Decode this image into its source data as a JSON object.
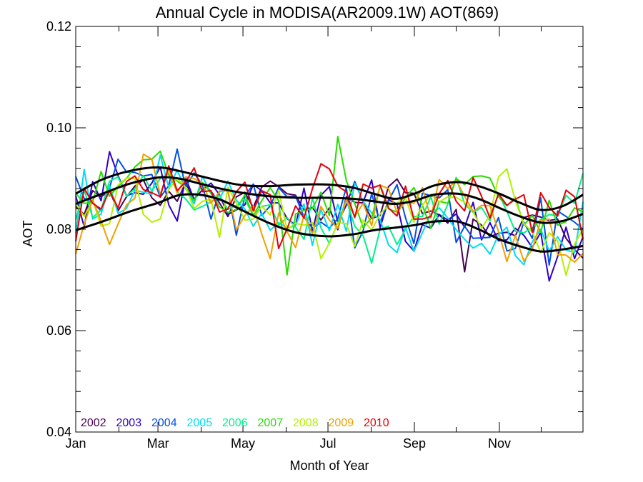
{
  "chart_data": {
    "type": "line",
    "title": "Annual Cycle in MODISA(AR2009.1W) AOT(869)",
    "xlabel": "Month of Year",
    "ylabel": "AOT",
    "xlim": [
      1,
      365
    ],
    "ylim": [
      0.04,
      0.12
    ],
    "x_ticks": [
      {
        "day": 1,
        "label": "Jan"
      },
      {
        "day": 60,
        "label": "Mar"
      },
      {
        "day": 121,
        "label": "May"
      },
      {
        "day": 182,
        "label": "Jul"
      },
      {
        "day": 244,
        "label": "Sep"
      },
      {
        "day": 305,
        "label": "Nov"
      }
    ],
    "y_ticks": [
      {
        "value": 0.04,
        "label": "0.04"
      },
      {
        "value": 0.06,
        "label": "0.06"
      },
      {
        "value": 0.08,
        "label": "0.08"
      },
      {
        "value": 0.1,
        "label": "0.10"
      },
      {
        "value": 0.12,
        "label": "0.12"
      }
    ],
    "legend_placement": "bottom-left",
    "series": [
      {
        "name": "2002",
        "color": "#4b0055",
        "values": [
          0.0845,
          0.0829,
          0.0876,
          0.0864,
          0.0876,
          0.0836,
          0.0864,
          0.0885,
          0.0897,
          0.0862,
          0.0847,
          0.0875,
          0.0855,
          0.0892,
          0.0857,
          0.0891,
          0.0875,
          0.0852,
          0.0825,
          0.0864,
          0.0873,
          0.0843,
          0.0883,
          0.0895,
          0.0884,
          0.087,
          0.0867,
          0.0838,
          0.0843,
          0.0818,
          0.0842,
          0.0799,
          0.0864,
          0.0853,
          0.0852,
          0.0821,
          0.0827,
          0.0884,
          0.0899,
          0.0872,
          0.0871,
          0.0831,
          0.0836,
          0.0828,
          0.0812,
          0.0839,
          0.0716,
          0.082,
          0.0808,
          0.0785,
          0.0792,
          0.0794,
          0.0787,
          0.0823,
          0.0828,
          0.0824,
          0.0817,
          0.082,
          0.0782,
          0.076,
          0.0743
        ]
      },
      {
        "name": "2003",
        "color": "#2f00c8",
        "values": [
          0.0866,
          0.0805,
          0.0894,
          0.0856,
          0.0953,
          0.0906,
          0.0866,
          0.0872,
          0.0869,
          0.0891,
          0.0923,
          0.0848,
          0.0816,
          0.0901,
          0.0859,
          0.0878,
          0.0891,
          0.0868,
          0.0829,
          0.0838,
          0.0848,
          0.0888,
          0.0876,
          0.0852,
          0.0852,
          0.0821,
          0.0808,
          0.0881,
          0.0796,
          0.0867,
          0.0884,
          0.0814,
          0.0847,
          0.0894,
          0.0854,
          0.0897,
          0.0803,
          0.0858,
          0.085,
          0.0776,
          0.0757,
          0.0809,
          0.0802,
          0.0829,
          0.0818,
          0.083,
          0.0804,
          0.0853,
          0.0779,
          0.0813,
          0.0777,
          0.0779,
          0.0802,
          0.0788,
          0.0764,
          0.0794,
          0.0698,
          0.0746,
          0.0804,
          0.0742,
          0.0785
        ]
      },
      {
        "name": "2004",
        "color": "#0050e6",
        "values": [
          0.0904,
          0.0861,
          0.0853,
          0.0836,
          0.0882,
          0.0938,
          0.0913,
          0.0912,
          0.0905,
          0.0908,
          0.0863,
          0.0886,
          0.0958,
          0.0883,
          0.0911,
          0.0886,
          0.082,
          0.0875,
          0.0876,
          0.0788,
          0.0865,
          0.0889,
          0.0827,
          0.0846,
          0.0882,
          0.0864,
          0.0865,
          0.0824,
          0.0802,
          0.0814,
          0.0802,
          0.0821,
          0.0883,
          0.0763,
          0.0797,
          0.087,
          0.0813,
          0.0856,
          0.0888,
          0.0823,
          0.0772,
          0.0871,
          0.0866,
          0.0862,
          0.0878,
          0.0774,
          0.0806,
          0.0782,
          0.0783,
          0.0784,
          0.0823,
          0.0757,
          0.0762,
          0.0814,
          0.0782,
          0.0862,
          0.0729,
          0.0836,
          0.0825,
          0.0814,
          0.08
        ]
      },
      {
        "name": "2005",
        "color": "#00dcf0",
        "values": [
          0.0792,
          0.0918,
          0.082,
          0.083,
          0.0886,
          0.0831,
          0.0841,
          0.0877,
          0.0873,
          0.0869,
          0.0946,
          0.0882,
          0.0916,
          0.088,
          0.085,
          0.0904,
          0.087,
          0.0858,
          0.0895,
          0.0857,
          0.084,
          0.0806,
          0.0831,
          0.0798,
          0.0813,
          0.0802,
          0.0807,
          0.085,
          0.0768,
          0.0839,
          0.0797,
          0.0849,
          0.0796,
          0.0891,
          0.0855,
          0.0832,
          0.0819,
          0.0769,
          0.0754,
          0.0804,
          0.0756,
          0.0793,
          0.083,
          0.0842,
          0.0822,
          0.0799,
          0.078,
          0.0763,
          0.0772,
          0.0751,
          0.0789,
          0.0804,
          0.0748,
          0.073,
          0.0775,
          0.08,
          0.0757,
          0.0785,
          0.0759,
          0.0754,
          0.0854
        ]
      },
      {
        "name": "2006",
        "color": "#00f08c",
        "values": [
          0.0819,
          0.0878,
          0.0823,
          0.0838,
          0.0895,
          0.0903,
          0.0865,
          0.088,
          0.0906,
          0.0875,
          0.09,
          0.0909,
          0.0874,
          0.086,
          0.0838,
          0.0845,
          0.0854,
          0.0867,
          0.0839,
          0.0847,
          0.0859,
          0.0827,
          0.0845,
          0.0848,
          0.0808,
          0.0823,
          0.0804,
          0.078,
          0.0861,
          0.0803,
          0.0772,
          0.0813,
          0.0858,
          0.0806,
          0.0787,
          0.0733,
          0.08,
          0.0806,
          0.077,
          0.08,
          0.0825,
          0.0825,
          0.0864,
          0.081,
          0.0849,
          0.0902,
          0.085,
          0.0833,
          0.0843,
          0.0816,
          0.0871,
          0.0835,
          0.0796,
          0.0793,
          0.0803,
          0.0819,
          0.0829,
          0.0826,
          0.0867,
          0.0851,
          0.091
        ]
      },
      {
        "name": "2007",
        "color": "#28dc00",
        "values": [
          0.0871,
          0.0851,
          0.0853,
          0.0914,
          0.0865,
          0.0885,
          0.09,
          0.0923,
          0.0937,
          0.0938,
          0.0954,
          0.0907,
          0.0895,
          0.0883,
          0.0856,
          0.0892,
          0.0872,
          0.0844,
          0.0833,
          0.0839,
          0.0868,
          0.0827,
          0.0856,
          0.0882,
          0.0856,
          0.071,
          0.083,
          0.0837,
          0.0841,
          0.0873,
          0.0827,
          0.0983,
          0.0896,
          0.0851,
          0.0803,
          0.0823,
          0.0885,
          0.084,
          0.0834,
          0.0863,
          0.0882,
          0.0847,
          0.0802,
          0.0855,
          0.0851,
          0.09,
          0.0888,
          0.0904,
          0.0905,
          0.0901,
          0.0864,
          0.0846,
          0.0863,
          0.0808,
          0.0827,
          0.0794,
          0.0857,
          0.0808,
          0.0815,
          0.0842,
          0.0834
        ]
      },
      {
        "name": "2008",
        "color": "#b4f000",
        "values": [
          0.0851,
          0.0825,
          0.0857,
          0.0806,
          0.0811,
          0.0887,
          0.0901,
          0.09,
          0.0829,
          0.0814,
          0.082,
          0.0879,
          0.0901,
          0.0882,
          0.0841,
          0.0855,
          0.0859,
          0.0784,
          0.0883,
          0.0852,
          0.0818,
          0.082,
          0.0845,
          0.0828,
          0.0877,
          0.0799,
          0.0812,
          0.0808,
          0.0813,
          0.0742,
          0.0773,
          0.0813,
          0.0811,
          0.0766,
          0.0818,
          0.0798,
          0.083,
          0.0847,
          0.0852,
          0.0863,
          0.0814,
          0.0847,
          0.0869,
          0.0854,
          0.0864,
          0.0863,
          0.0853,
          0.0834,
          0.0802,
          0.0827,
          0.0903,
          0.0919,
          0.0856,
          0.0811,
          0.0795,
          0.0754,
          0.0793,
          0.0777,
          0.0709,
          0.0771,
          0.08
        ]
      },
      {
        "name": "2009",
        "color": "#f0a000",
        "values": [
          0.0751,
          0.081,
          0.0858,
          0.0816,
          0.077,
          0.081,
          0.0848,
          0.0861,
          0.0948,
          0.0938,
          0.0868,
          0.0919,
          0.0871,
          0.0903,
          0.09,
          0.089,
          0.0851,
          0.0874,
          0.0876,
          0.0799,
          0.0827,
          0.0846,
          0.0791,
          0.0742,
          0.0832,
          0.0795,
          0.0764,
          0.0828,
          0.0791,
          0.0845,
          0.0818,
          0.0802,
          0.0858,
          0.0825,
          0.0851,
          0.0807,
          0.0887,
          0.088,
          0.0833,
          0.0854,
          0.0851,
          0.0882,
          0.0822,
          0.0898,
          0.088,
          0.0896,
          0.0865,
          0.0835,
          0.0847,
          0.0846,
          0.0796,
          0.0736,
          0.0788,
          0.0737,
          0.076,
          0.0817,
          0.082,
          0.075,
          0.0749,
          0.0735,
          0.0752
        ]
      },
      {
        "name": "2010",
        "color": "#e6000a",
        "values": [
          0.0776,
          0.0881,
          0.0851,
          0.084,
          0.0876,
          0.0842,
          0.0894,
          0.0905,
          0.0878,
          0.0872,
          0.0864,
          0.0925,
          0.0876,
          0.0893,
          0.0921,
          0.0874,
          0.0876,
          0.0834,
          0.084,
          0.0874,
          0.0893,
          0.0836,
          0.0876,
          0.0868,
          0.0762,
          0.0801,
          0.0846,
          0.0822,
          0.088,
          0.0929,
          0.0919,
          0.0885,
          0.0874,
          0.0823,
          0.0889,
          0.0881,
          0.0887,
          0.0842,
          0.0826,
          0.0885,
          0.082,
          0.082,
          0.0825,
          0.087,
          0.0896,
          0.0855,
          0.0836,
          0.0902,
          0.0865,
          0.0822,
          0.087,
          0.0847,
          0.0859,
          0.0868,
          0.0794,
          0.0872,
          0.0843,
          0.0826,
          0.0877,
          0.0864,
          0.078
        ]
      }
    ],
    "fit_curves": [
      {
        "color": "#000000",
        "x": [
          1,
          20,
          40,
          60,
          75,
          90,
          105,
          120,
          140,
          160,
          182,
          200,
          215,
          230,
          244,
          258,
          275,
          290,
          305,
          320,
          335,
          350,
          365
        ],
        "values": [
          0.085,
          0.087,
          0.089,
          0.0902,
          0.09,
          0.089,
          0.088,
          0.0872,
          0.0865,
          0.0862,
          0.0862,
          0.086,
          0.0855,
          0.085,
          0.0856,
          0.0868,
          0.087,
          0.086,
          0.0842,
          0.0825,
          0.0813,
          0.0816,
          0.083
        ]
      },
      {
        "color": "#000000",
        "x": [
          1,
          20,
          40,
          60,
          75,
          90,
          105,
          120,
          140,
          160,
          182,
          200,
          215,
          230,
          244,
          258,
          275,
          290,
          305,
          320,
          335,
          350,
          365
        ],
        "values": [
          0.087,
          0.0898,
          0.0915,
          0.0922,
          0.0915,
          0.0905,
          0.0895,
          0.0887,
          0.0885,
          0.0888,
          0.0888,
          0.0882,
          0.087,
          0.086,
          0.087,
          0.0886,
          0.0893,
          0.0885,
          0.087,
          0.0852,
          0.0838,
          0.0845,
          0.0868
        ]
      },
      {
        "color": "#000000",
        "x": [
          1,
          20,
          40,
          60,
          75,
          90,
          105,
          120,
          140,
          160,
          182,
          200,
          215,
          230,
          244,
          258,
          275,
          290,
          305,
          320,
          335,
          350,
          365
        ],
        "values": [
          0.0798,
          0.0815,
          0.0835,
          0.0852,
          0.0867,
          0.0868,
          0.0858,
          0.0838,
          0.0812,
          0.0793,
          0.0786,
          0.079,
          0.0798,
          0.0803,
          0.0808,
          0.0815,
          0.0815,
          0.08,
          0.078,
          0.0766,
          0.0756,
          0.076,
          0.0767
        ]
      }
    ]
  }
}
